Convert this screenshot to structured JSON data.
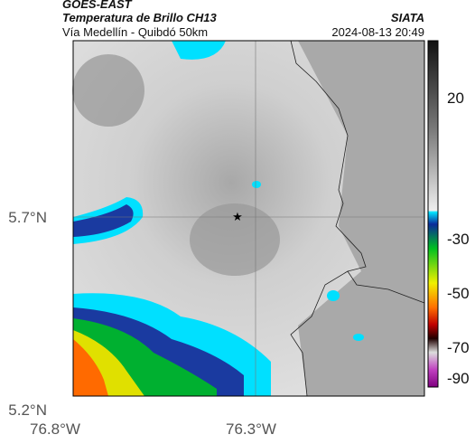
{
  "header": {
    "title": "GOES-EAST",
    "subtitle": "Temperatura de Brillo CH13",
    "location": "Vía Medellín - Quibdó 50km",
    "source": "SIATA",
    "datetime": "2024-08-13 20:49"
  },
  "map": {
    "lat_labels": [
      "5.7°N",
      "5.2°N"
    ],
    "lon_labels": [
      "76.8°W",
      "76.3°W"
    ]
  },
  "colorbar": {
    "ticks": [
      20,
      -30,
      -50,
      -70,
      -90
    ]
  }
}
